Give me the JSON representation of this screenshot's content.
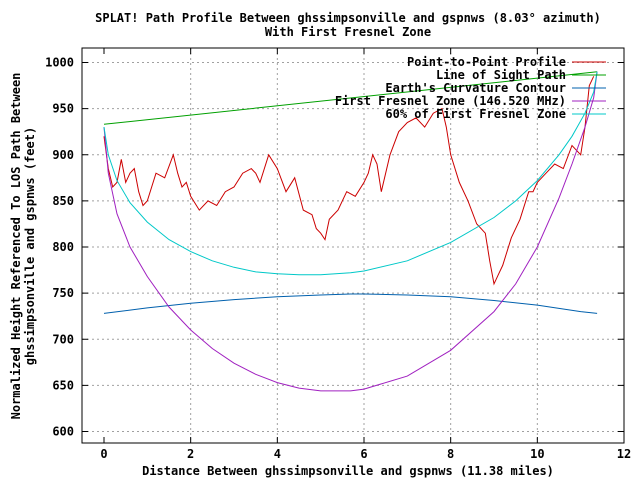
{
  "chart_data": {
    "type": "line",
    "title": "SPLAT! Path Profile Between ghssimpsonville and gspnws (8.03° azimuth)",
    "subtitle": "With First Fresnel Zone",
    "xlabel": "Distance Between ghssimpsonville and gspnws (11.38 miles)",
    "ylabel_line1": "Normalized Height Referenced To LOS Path Between",
    "ylabel_line2": "ghssimpsonville and gspnws (feet)",
    "xlim": [
      0,
      12
    ],
    "ylim": [
      590,
      1015
    ],
    "grid": true,
    "legend_position": "top-right",
    "x_ticks": [
      0,
      2,
      4,
      6,
      8,
      10,
      12
    ],
    "y_ticks": [
      600,
      650,
      700,
      750,
      800,
      850,
      900,
      950,
      1000
    ],
    "series": [
      {
        "name": "Point-to-Point Profile",
        "color": "#cc0000",
        "x": [
          0,
          0.1,
          0.2,
          0.3,
          0.4,
          0.5,
          0.6,
          0.7,
          0.8,
          0.9,
          1.0,
          1.2,
          1.4,
          1.6,
          1.7,
          1.8,
          1.9,
          2.0,
          2.2,
          2.4,
          2.6,
          2.8,
          3.0,
          3.2,
          3.4,
          3.5,
          3.6,
          3.8,
          4.0,
          4.2,
          4.4,
          4.6,
          4.8,
          4.9,
          5.0,
          5.1,
          5.2,
          5.4,
          5.6,
          5.8,
          6.0,
          6.1,
          6.2,
          6.3,
          6.4,
          6.6,
          6.8,
          7.0,
          7.2,
          7.4,
          7.6,
          7.8,
          7.9,
          8.0,
          8.2,
          8.4,
          8.6,
          8.8,
          8.9,
          9.0,
          9.1,
          9.2,
          9.4,
          9.6,
          9.8,
          9.9,
          10.0,
          10.2,
          10.4,
          10.6,
          10.8,
          11.0,
          11.1,
          11.2,
          11.3
        ],
        "values": [
          920,
          885,
          865,
          870,
          895,
          870,
          880,
          885,
          860,
          845,
          850,
          880,
          875,
          900,
          880,
          865,
          870,
          855,
          840,
          850,
          845,
          860,
          865,
          880,
          885,
          880,
          870,
          900,
          885,
          860,
          875,
          840,
          835,
          820,
          815,
          808,
          830,
          840,
          860,
          855,
          870,
          880,
          900,
          890,
          860,
          900,
          925,
          935,
          940,
          930,
          945,
          950,
          930,
          900,
          870,
          850,
          825,
          815,
          785,
          760,
          770,
          780,
          810,
          830,
          860,
          860,
          870,
          880,
          890,
          885,
          910,
          900,
          930,
          975,
          985
        ]
      },
      {
        "name": "Line of Sight Path",
        "color": "#00a000",
        "x": [
          0,
          11.38
        ],
        "values": [
          933,
          990
        ]
      },
      {
        "name": "Earth's Curvature Contour",
        "color": "#0060ad",
        "x": [
          0,
          1,
          2,
          3,
          4,
          5,
          5.69,
          6,
          7,
          8,
          9,
          10,
          11,
          11.38
        ],
        "values": [
          728,
          734,
          739,
          743,
          746,
          748,
          749,
          749,
          748,
          746,
          742,
          737,
          730,
          728
        ]
      },
      {
        "name": "First Fresnel Zone (146.520 MHz)",
        "color": "#a020c0",
        "x": [
          0,
          0.1,
          0.3,
          0.6,
          1,
          1.5,
          2,
          2.5,
          3,
          3.5,
          4,
          4.5,
          5,
          5.69,
          6,
          7,
          8,
          9,
          9.5,
          10,
          10.5,
          10.8,
          11.1,
          11.3,
          11.38
        ],
        "values": [
          930,
          880,
          836,
          800,
          768,
          735,
          710,
          690,
          674,
          662,
          653,
          647,
          644,
          644,
          646,
          660,
          688,
          730,
          760,
          800,
          853,
          890,
          930,
          962,
          990
        ]
      },
      {
        "name": "60% of First Fresnel Zone",
        "color": "#00c8c8",
        "x": [
          0,
          0.1,
          0.3,
          0.6,
          1,
          1.5,
          2,
          2.5,
          3,
          3.5,
          4,
          4.5,
          5,
          5.69,
          6,
          7,
          8,
          9,
          9.5,
          10,
          10.5,
          10.8,
          11.1,
          11.3,
          11.38
        ],
        "values": [
          930,
          900,
          872,
          848,
          827,
          808,
          795,
          785,
          778,
          773,
          771,
          770,
          770,
          772,
          774,
          785,
          805,
          832,
          850,
          872,
          900,
          920,
          945,
          968,
          990
        ]
      }
    ]
  }
}
